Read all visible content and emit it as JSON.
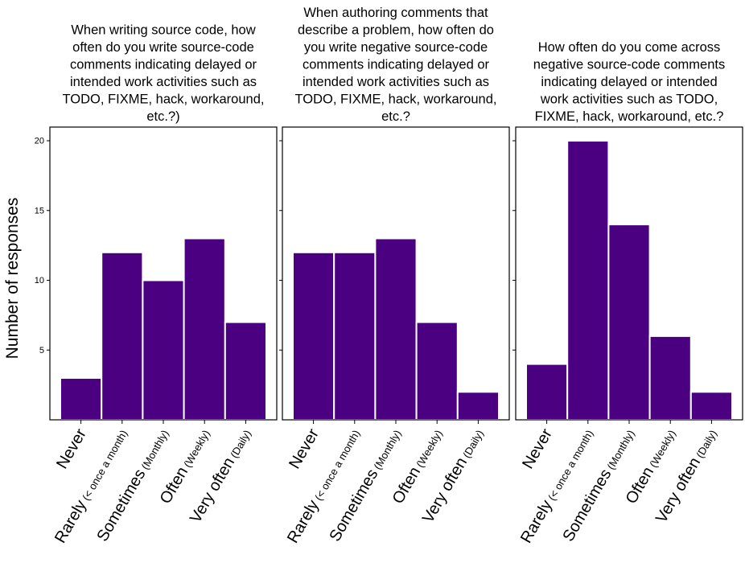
{
  "colors": {
    "bar": "#4b0082",
    "bar_edge": "#ffffff",
    "frame": "#000000",
    "text": "#000000"
  },
  "chart_data": {
    "type": "bar",
    "ylabel": "Number of responses",
    "ylim": [
      0,
      21
    ],
    "yticks": [
      5,
      10,
      15,
      20
    ],
    "shared_y": true,
    "grid": false,
    "legend": "none",
    "panels": [
      {
        "title_lines": [
          "When  writing source code, how",
          "often do you write source-code",
          "comments indicating delayed or",
          "intended work activities such as",
          "TODO, FIXME, hack, workaround,",
          "etc.?)"
        ],
        "values": [
          3,
          12,
          10,
          13,
          7
        ]
      },
      {
        "title_lines": [
          "When authoring comments that",
          "describe a problem, how often do",
          "you write negative source-code",
          "comments indicating delayed or",
          "intended work activities such as",
          "TODO, FIXME, hack, workaround,",
          "etc.?"
        ],
        "values": [
          12,
          12,
          13,
          7,
          2
        ]
      },
      {
        "title_lines": [
          "How often do you come across",
          "negative source-code comments",
          "indicating delayed or intended",
          "work activities such as TODO,",
          "FIXME, hack, workaround, etc.?"
        ],
        "values": [
          4,
          20,
          14,
          6,
          2
        ]
      }
    ],
    "categories": [
      {
        "main": "Never",
        "sub": ""
      },
      {
        "main": "Rarely",
        "sub": "(< once a month)"
      },
      {
        "main": "Sometimes",
        "sub": "(Monthly)"
      },
      {
        "main": "Often",
        "sub": "(Weekly)"
      },
      {
        "main": "Very often",
        "sub": "(Daily)"
      }
    ]
  }
}
